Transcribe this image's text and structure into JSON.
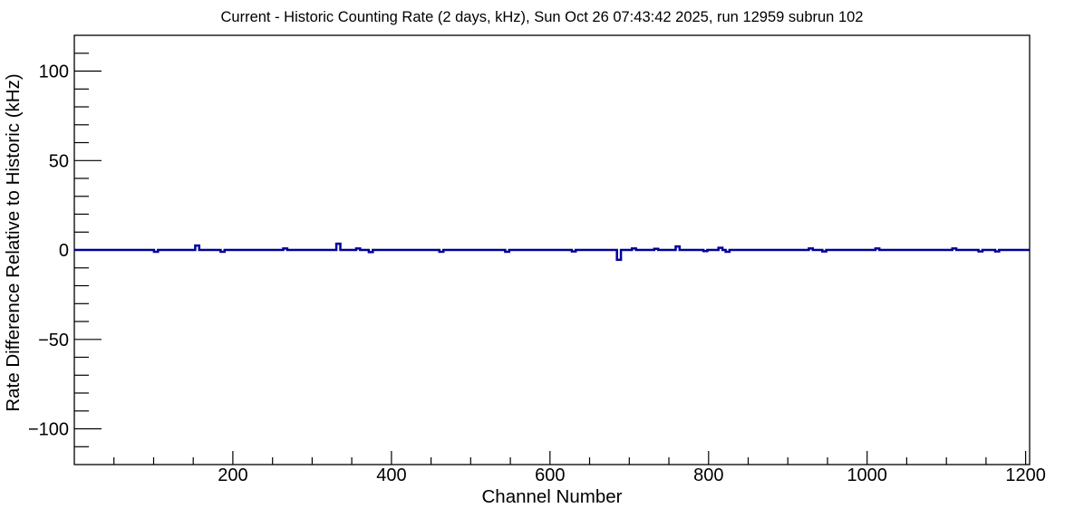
{
  "figure": {
    "background": "#ffffff",
    "frame_color": "#000000",
    "text_color": "#000000"
  },
  "chart_data": {
    "type": "line",
    "title": "Current - Historic Counting Rate (2 days, kHz), Sun Oct 26 07:43:42 2025, run 12959 subrun 102",
    "xlabel": "Channel Number",
    "ylabel": "Rate Difference Relative to Historic (kHz)",
    "xlim": [
      0,
      1205
    ],
    "ylim": [
      -120,
      120
    ],
    "grid": false,
    "legend_position": "none",
    "line_color": "#000099",
    "x_ticks": [
      {
        "v": 200,
        "label": "200"
      },
      {
        "v": 400,
        "label": "400"
      },
      {
        "v": 600,
        "label": "600"
      },
      {
        "v": 800,
        "label": "800"
      },
      {
        "v": 1000,
        "label": "1000"
      },
      {
        "v": 1200,
        "label": "1200"
      }
    ],
    "x_minor_step": 50,
    "y_ticks": [
      {
        "v": 100,
        "label": "100"
      },
      {
        "v": 50,
        "label": "50"
      },
      {
        "v": 0,
        "label": "0"
      },
      {
        "v": -50,
        "label": "−50"
      },
      {
        "v": -100,
        "label": "−100"
      }
    ],
    "y_minor_step": 10,
    "series": [
      {
        "name": "rate-difference-current-minus-historic",
        "baseline": 0,
        "spikes": [
          [
            103,
            -1.0
          ],
          [
            155,
            2.5
          ],
          [
            187,
            -1.0
          ],
          [
            266,
            0.8
          ],
          [
            333,
            3.5
          ],
          [
            358,
            0.8
          ],
          [
            374,
            -1.2
          ],
          [
            463,
            -1.0
          ],
          [
            546,
            -1.0
          ],
          [
            630,
            -0.8
          ],
          [
            687,
            -5.5
          ],
          [
            706,
            0.8
          ],
          [
            734,
            0.6
          ],
          [
            761,
            2.0
          ],
          [
            796,
            -0.6
          ],
          [
            815,
            1.2
          ],
          [
            824,
            -1.0
          ],
          [
            929,
            0.8
          ],
          [
            946,
            -0.8
          ],
          [
            1013,
            0.8
          ],
          [
            1110,
            0.8
          ],
          [
            1143,
            -0.8
          ],
          [
            1164,
            -0.8
          ]
        ]
      }
    ]
  }
}
